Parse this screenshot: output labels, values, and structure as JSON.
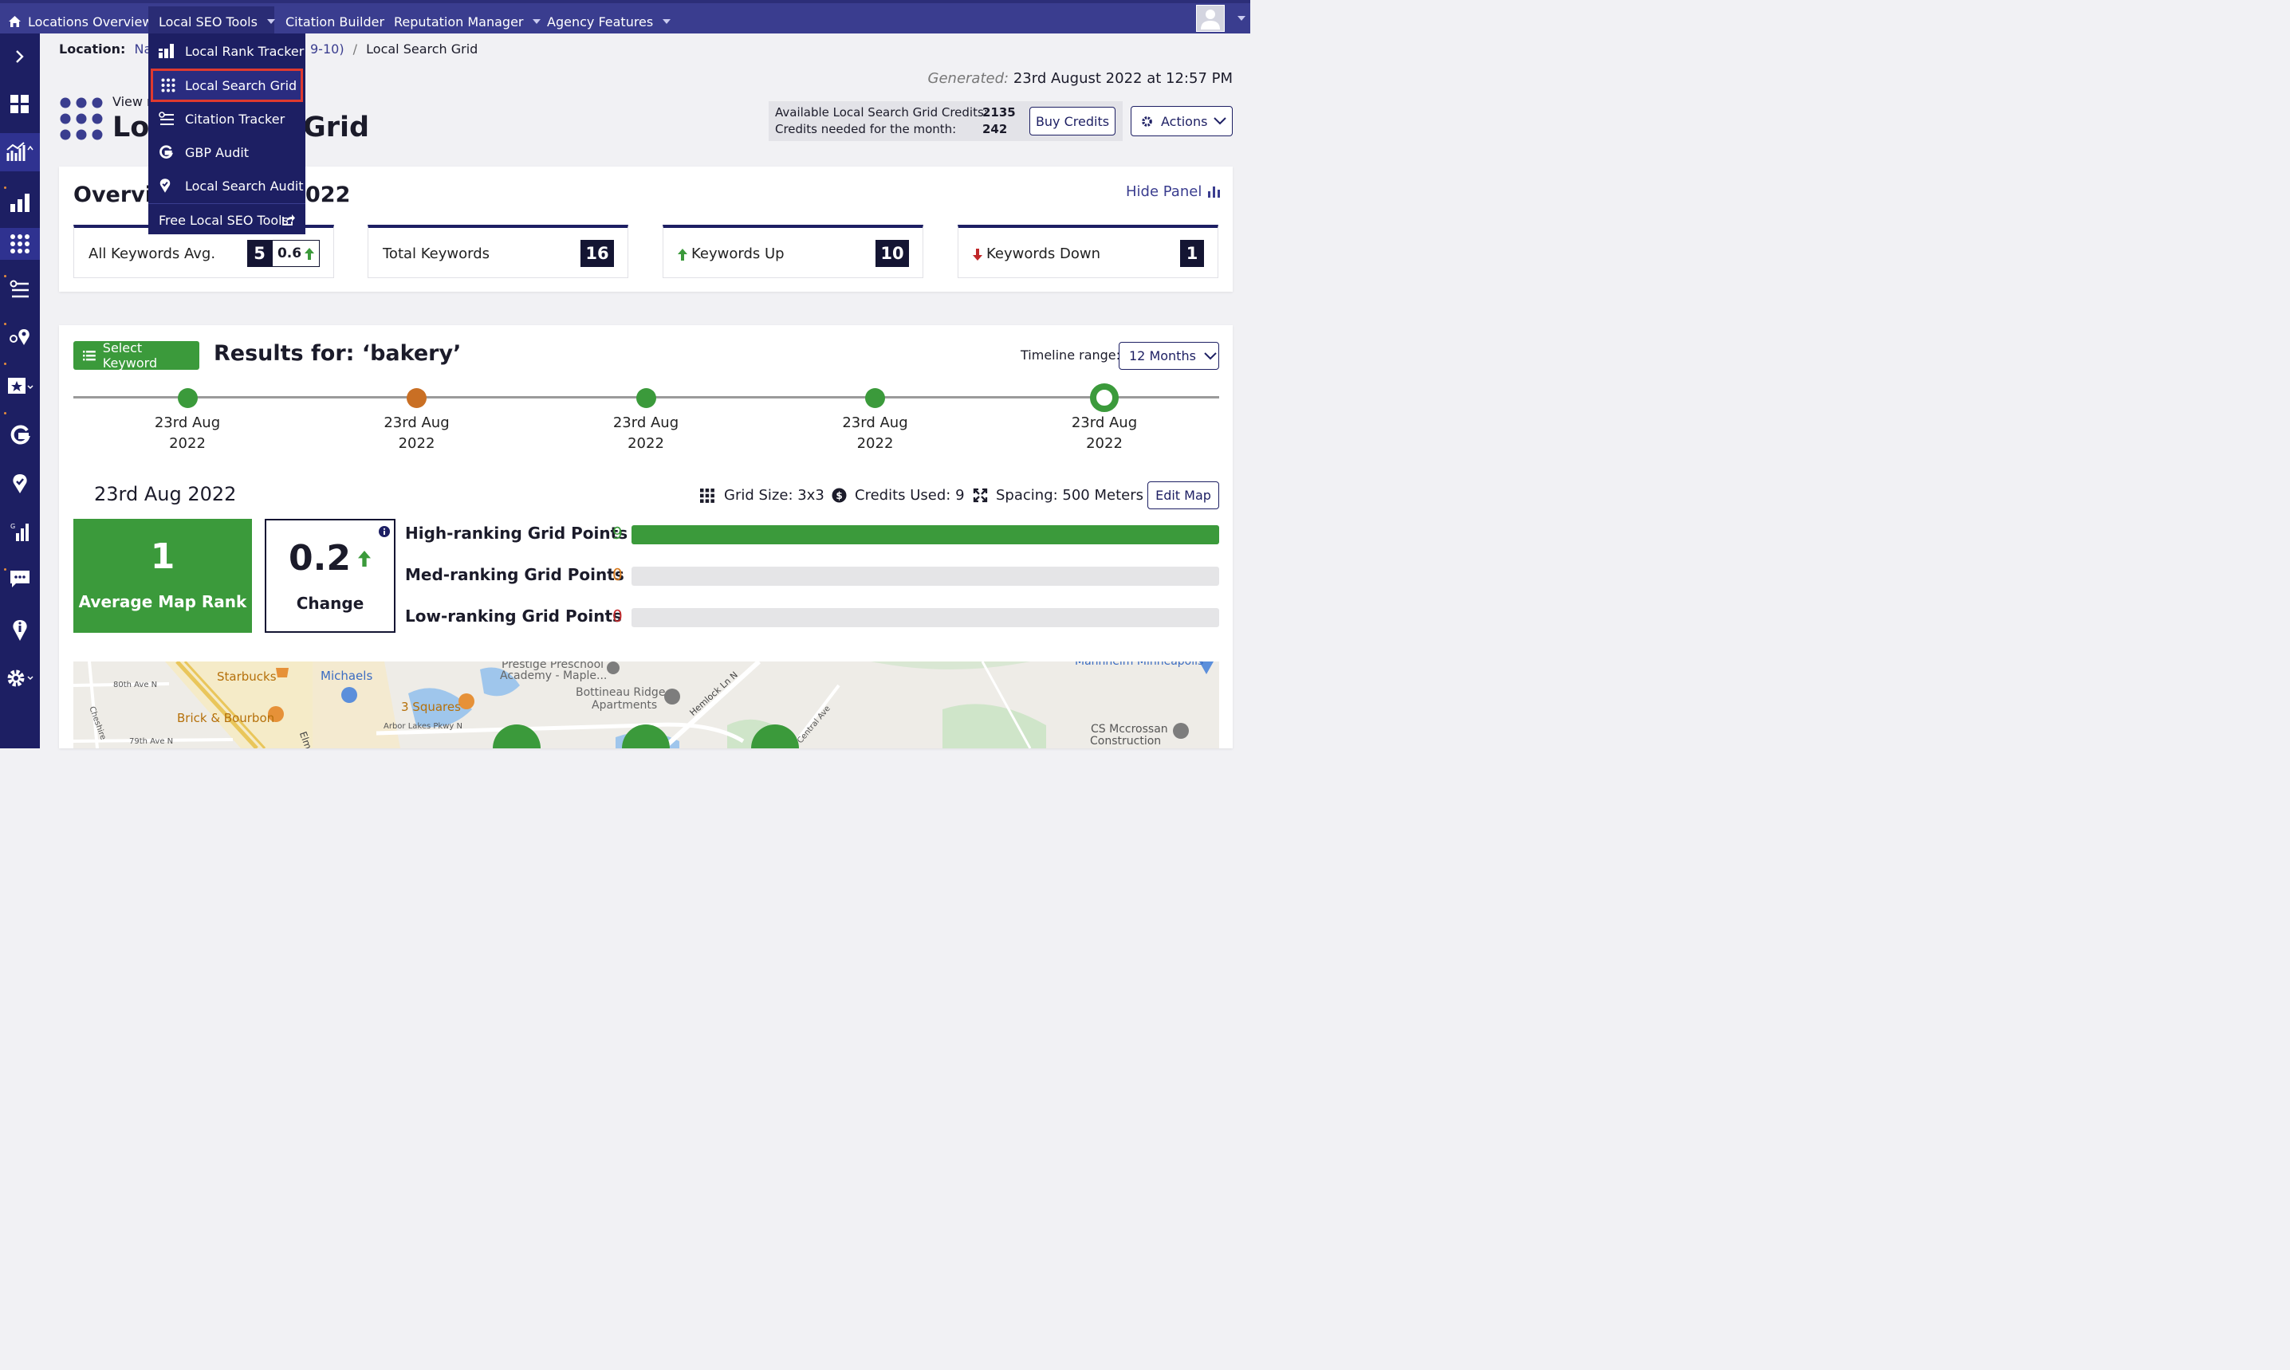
{
  "nav": {
    "items": [
      "Locations Overview",
      "Local SEO Tools",
      "Citation Builder",
      "Reputation Manager",
      "Agency Features"
    ]
  },
  "dropdown": {
    "items": [
      "Local Rank Tracker",
      "Local Search Grid",
      "Citation Tracker",
      "GBP Audit",
      "Local Search Audit"
    ],
    "footer": "Free Local SEO Tools"
  },
  "breadcrumb": {
    "label": "Location:",
    "location": "Nadia",
    "location_tail": "9-10)",
    "separator": "/",
    "current": "Local Search Grid"
  },
  "generated": {
    "label": "Generated:",
    "value": "23rd August 2022 at 12:57 PM"
  },
  "header": {
    "view_prefix": "View r",
    "title_left": "Loc",
    "title_right": "Grid"
  },
  "credits": {
    "available_label": "Available Local Search Grid Credits:",
    "available_value": "2135",
    "needed_label": "Credits needed for the month:",
    "needed_value": "242",
    "buy_label": "Buy Credits",
    "actions_label": "Actions"
  },
  "overview": {
    "title_left": "Overvie",
    "title_right": "022",
    "hide_panel": "Hide Panel",
    "stats": {
      "avg_label": "All Keywords Avg.",
      "avg_value": "5",
      "avg_change": "0.6",
      "total_label": "Total Keywords",
      "total_value": "16",
      "up_label": "Keywords Up",
      "up_value": "10",
      "down_label": "Keywords Down",
      "down_value": "1"
    }
  },
  "results": {
    "select_keyword": "Select Keyword",
    "title": "Results for: ‘bakery’",
    "timeline_label": "Timeline range:",
    "timeline_value": "12 Months",
    "timeline": [
      {
        "line1": "23rd Aug",
        "line2": "2022",
        "status": "green"
      },
      {
        "line1": "23rd Aug",
        "line2": "2022",
        "status": "orange"
      },
      {
        "line1": "23rd Aug",
        "line2": "2022",
        "status": "green"
      },
      {
        "line1": "23rd Aug",
        "line2": "2022",
        "status": "green"
      },
      {
        "line1": "23rd Aug",
        "line2": "2022",
        "status": "selected"
      }
    ],
    "date": "23rd Aug 2022",
    "grid_size": "Grid Size: 3x3",
    "credits_used": "Credits Used: 9",
    "spacing": "Spacing: 500 Meters",
    "edit_map": "Edit Map",
    "avg_rank_value": "1",
    "avg_rank_label": "Average Map Rank",
    "change_value": "0.2",
    "change_label": "Change",
    "grid_points": [
      {
        "label": "High-ranking Grid Points",
        "count": "9",
        "fraction": 1.0,
        "color": "#3b9a3b"
      },
      {
        "label": "Med-ranking Grid Points",
        "count": "0",
        "fraction": 0.0,
        "color": "#d77a1f"
      },
      {
        "label": "Low-ranking Grid Points",
        "count": "0",
        "fraction": 0.0,
        "color": "#c0282a"
      }
    ]
  },
  "map": {
    "labels": [
      "80th Ave N",
      "Starbucks",
      "Michaels",
      "Prestige Preschool",
      "Academy - Maple...",
      "Bottineau Ridge",
      "Apartments",
      "Hemlock Ln N",
      "Mannheim Minneapolis",
      "3 Squares",
      "Brick & Bourbon",
      "Arbor Lakes Pkwy N",
      "Central Ave",
      "CS Mccrossan",
      "Construction",
      "79th Ave N",
      "Cheshire",
      "Elm"
    ]
  },
  "colors": {
    "nav": "#3a3d8f",
    "sidebar": "#1d1f63",
    "green": "#3b9a3b",
    "orange": "#c96f24",
    "accent_red": "#e03a2f"
  }
}
